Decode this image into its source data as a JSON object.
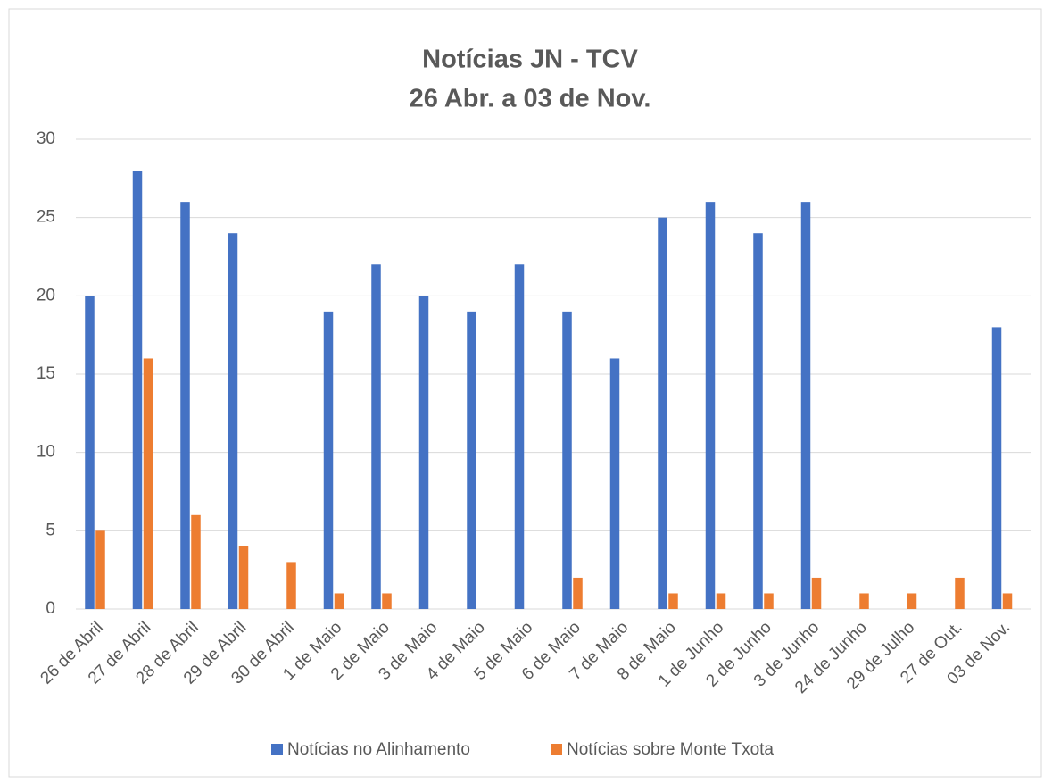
{
  "chart_data": {
    "type": "bar",
    "title": "Notícias JN - TCV",
    "subtitle": "26 Abr. a 03 de Nov.",
    "categories": [
      "26 de Abril",
      "27 de Abril",
      "28 de Abril",
      "29 de Abril",
      "30 de Abril",
      "1 de Maio",
      "2 de Maio",
      "3 de Maio",
      "4 de Maio",
      "5 de Maio",
      "6 de Maio",
      "7 de Maio",
      "8 de Maio",
      "1 de Junho",
      "2 de Junho",
      "3 de Junho",
      "24 de Junho",
      "29 de Julho",
      "27 de Out.",
      "03 de Nov."
    ],
    "series": [
      {
        "name": "Notícias no Alinhamento",
        "color": "#4472c4",
        "values": [
          20,
          28,
          26,
          24,
          0,
          19,
          22,
          20,
          19,
          22,
          19,
          16,
          25,
          26,
          24,
          26,
          0,
          0,
          0,
          18
        ]
      },
      {
        "name": "Notícias sobre Monte Txota",
        "color": "#ed7d31",
        "values": [
          5,
          16,
          6,
          4,
          3,
          1,
          1,
          0,
          0,
          0,
          2,
          0,
          1,
          1,
          1,
          2,
          1,
          1,
          2,
          1
        ]
      }
    ],
    "ylim": [
      0,
      30
    ],
    "yticks": [
      0,
      5,
      10,
      15,
      20,
      25,
      30
    ],
    "grid": true,
    "legend": "bottom"
  }
}
